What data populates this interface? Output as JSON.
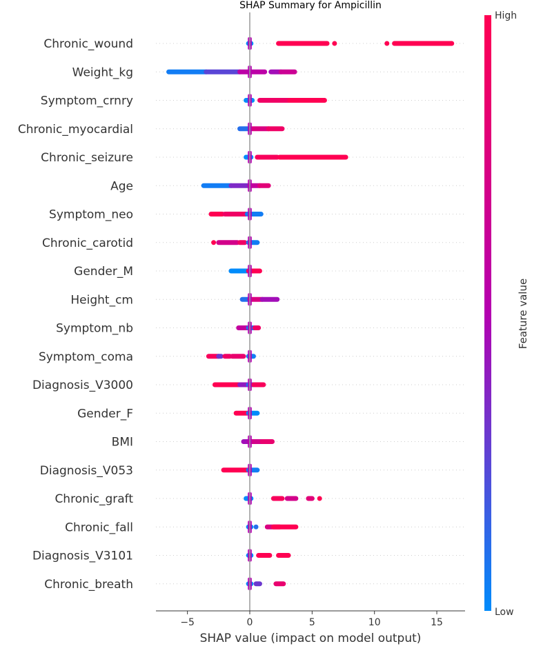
{
  "chart_data": {
    "type": "scatter",
    "title": "SHAP Summary for Ampicillin",
    "xlabel": "SHAP value (impact on model output)",
    "xlim": [
      -7.5,
      17.3
    ],
    "xticks": [
      -5,
      0,
      5,
      10,
      15
    ],
    "xtick_labels": [
      "−5",
      "0",
      "5",
      "10",
      "15"
    ],
    "colorbar": {
      "label": "Feature value",
      "high_label": "High",
      "low_label": "Low",
      "low_color": "#008bfb",
      "high_color": "#ff0052"
    },
    "series": [
      {
        "name": "Chronic_wound",
        "segments": [
          {
            "xmin": -0.1,
            "xmax": 0.1,
            "value": 0.0
          },
          {
            "xmin": 2.3,
            "xmax": 6.2,
            "value": 1.0
          },
          {
            "xmin": 6.8,
            "xmax": 6.8,
            "value": 1.0
          },
          {
            "xmin": 11.0,
            "xmax": 11.0,
            "value": 1.0
          },
          {
            "xmin": 11.6,
            "xmax": 16.2,
            "value": 1.0
          }
        ]
      },
      {
        "name": "Weight_kg",
        "segments": [
          {
            "xmin": -6.5,
            "xmax": -3.5,
            "value": 0.05
          },
          {
            "xmin": -3.5,
            "xmax": -0.8,
            "value": 0.25
          },
          {
            "xmin": -0.8,
            "xmax": 1.2,
            "value": 0.55
          },
          {
            "xmin": 1.7,
            "xmax": 2.5,
            "value": 0.45
          },
          {
            "xmin": 2.5,
            "xmax": 3.6,
            "value": 0.65
          }
        ]
      },
      {
        "name": "Symptom_crnry",
        "segments": [
          {
            "xmin": -0.3,
            "xmax": 0.2,
            "value": 0.0
          },
          {
            "xmin": 0.8,
            "xmax": 3.2,
            "value": 0.9
          },
          {
            "xmin": 3.2,
            "xmax": 6.0,
            "value": 1.0
          }
        ]
      },
      {
        "name": "Chronic_myocardial",
        "segments": [
          {
            "xmin": -0.8,
            "xmax": 0.1,
            "value": 0.1
          },
          {
            "xmin": 0.2,
            "xmax": 1.5,
            "value": 0.75
          },
          {
            "xmin": 1.5,
            "xmax": 2.6,
            "value": 0.9
          }
        ]
      },
      {
        "name": "Chronic_seizure",
        "segments": [
          {
            "xmin": -0.3,
            "xmax": 0.1,
            "value": 0.0
          },
          {
            "xmin": 0.6,
            "xmax": 2.2,
            "value": 0.95
          },
          {
            "xmin": 2.4,
            "xmax": 7.7,
            "value": 1.0
          }
        ]
      },
      {
        "name": "Age",
        "segments": [
          {
            "xmin": -3.7,
            "xmax": -1.5,
            "value": 0.05
          },
          {
            "xmin": -1.5,
            "xmax": 0.0,
            "value": 0.35
          },
          {
            "xmin": 0.0,
            "xmax": 0.8,
            "value": 0.6
          },
          {
            "xmin": 0.8,
            "xmax": 1.5,
            "value": 0.8
          }
        ]
      },
      {
        "name": "Symptom_neo",
        "segments": [
          {
            "xmin": -3.1,
            "xmax": -2.2,
            "value": 1.0
          },
          {
            "xmin": -2.0,
            "xmax": -0.3,
            "value": 0.9
          },
          {
            "xmin": -0.2,
            "xmax": 0.9,
            "value": 0.05
          }
        ]
      },
      {
        "name": "Chronic_carotid",
        "segments": [
          {
            "xmin": -2.9,
            "xmax": -2.9,
            "value": 1.0
          },
          {
            "xmin": -2.5,
            "xmax": -1.0,
            "value": 0.7
          },
          {
            "xmin": -0.8,
            "xmax": -0.4,
            "value": 0.9
          },
          {
            "xmin": -0.1,
            "xmax": 0.6,
            "value": 0.05
          }
        ]
      },
      {
        "name": "Gender_M",
        "segments": [
          {
            "xmin": -1.5,
            "xmax": 0.0,
            "value": 0.0
          },
          {
            "xmin": -0.1,
            "xmax": 0.8,
            "value": 1.0
          }
        ]
      },
      {
        "name": "Height_cm",
        "segments": [
          {
            "xmin": -0.6,
            "xmax": 0.0,
            "value": 0.1
          },
          {
            "xmin": 0.0,
            "xmax": 1.0,
            "value": 0.75
          },
          {
            "xmin": 1.0,
            "xmax": 2.2,
            "value": 0.45
          }
        ]
      },
      {
        "name": "Symptom_nb",
        "segments": [
          {
            "xmin": -0.9,
            "xmax": -0.2,
            "value": 0.6
          },
          {
            "xmin": -0.1,
            "xmax": 0.4,
            "value": 0.05
          },
          {
            "xmin": 0.4,
            "xmax": 0.7,
            "value": 0.9
          }
        ]
      },
      {
        "name": "Symptom_coma",
        "segments": [
          {
            "xmin": -3.3,
            "xmax": -2.5,
            "value": 0.95
          },
          {
            "xmin": -2.5,
            "xmax": -2.3,
            "value": 0.3
          },
          {
            "xmin": -2.0,
            "xmax": -1.6,
            "value": 0.9
          },
          {
            "xmin": -1.4,
            "xmax": -0.5,
            "value": 0.85
          },
          {
            "xmin": -0.1,
            "xmax": 0.3,
            "value": 0.05
          }
        ]
      },
      {
        "name": "Diagnosis_V3000",
        "segments": [
          {
            "xmin": -2.8,
            "xmax": -0.8,
            "value": 1.0
          },
          {
            "xmin": -0.8,
            "xmax": -0.1,
            "value": 0.4
          },
          {
            "xmin": -0.1,
            "xmax": 0.3,
            "value": 0.05
          },
          {
            "xmin": 0.3,
            "xmax": 1.1,
            "value": 0.95
          }
        ]
      },
      {
        "name": "Gender_F",
        "segments": [
          {
            "xmin": -1.1,
            "xmax": 0.0,
            "value": 1.0
          },
          {
            "xmin": -0.1,
            "xmax": 0.6,
            "value": 0.0
          }
        ]
      },
      {
        "name": "BMI",
        "segments": [
          {
            "xmin": -0.5,
            "xmax": 0.0,
            "value": 0.45
          },
          {
            "xmin": 0.0,
            "xmax": 1.0,
            "value": 0.7
          },
          {
            "xmin": 1.0,
            "xmax": 1.8,
            "value": 0.85
          }
        ]
      },
      {
        "name": "Diagnosis_V053",
        "segments": [
          {
            "xmin": -2.1,
            "xmax": -0.2,
            "value": 1.0
          },
          {
            "xmin": -0.1,
            "xmax": 0.6,
            "value": 0.05
          }
        ]
      },
      {
        "name": "Chronic_graft",
        "segments": [
          {
            "xmin": -0.3,
            "xmax": 0.1,
            "value": 0.0
          },
          {
            "xmin": 1.9,
            "xmax": 2.6,
            "value": 0.95
          },
          {
            "xmin": 3.0,
            "xmax": 3.7,
            "value": 0.7
          },
          {
            "xmin": 4.7,
            "xmax": 5.0,
            "value": 0.8
          },
          {
            "xmin": 5.6,
            "xmax": 5.6,
            "value": 1.0
          }
        ]
      },
      {
        "name": "Chronic_fall",
        "segments": [
          {
            "xmin": -0.1,
            "xmax": 0.1,
            "value": 0.0
          },
          {
            "xmin": 0.5,
            "xmax": 0.5,
            "value": 0.1
          },
          {
            "xmin": 1.4,
            "xmax": 2.4,
            "value": 0.75
          },
          {
            "xmin": 1.9,
            "xmax": 3.7,
            "value": 1.0
          }
        ]
      },
      {
        "name": "Diagnosis_V3101",
        "segments": [
          {
            "xmin": -0.1,
            "xmax": 0.1,
            "value": 0.0
          },
          {
            "xmin": 0.7,
            "xmax": 1.6,
            "value": 1.0
          },
          {
            "xmin": 2.3,
            "xmax": 3.1,
            "value": 1.0
          }
        ]
      },
      {
        "name": "Chronic_breath",
        "segments": [
          {
            "xmin": -0.1,
            "xmax": 0.1,
            "value": 0.0
          },
          {
            "xmin": 0.5,
            "xmax": 0.8,
            "value": 0.3
          },
          {
            "xmin": 2.1,
            "xmax": 2.7,
            "value": 0.85
          }
        ]
      }
    ]
  }
}
